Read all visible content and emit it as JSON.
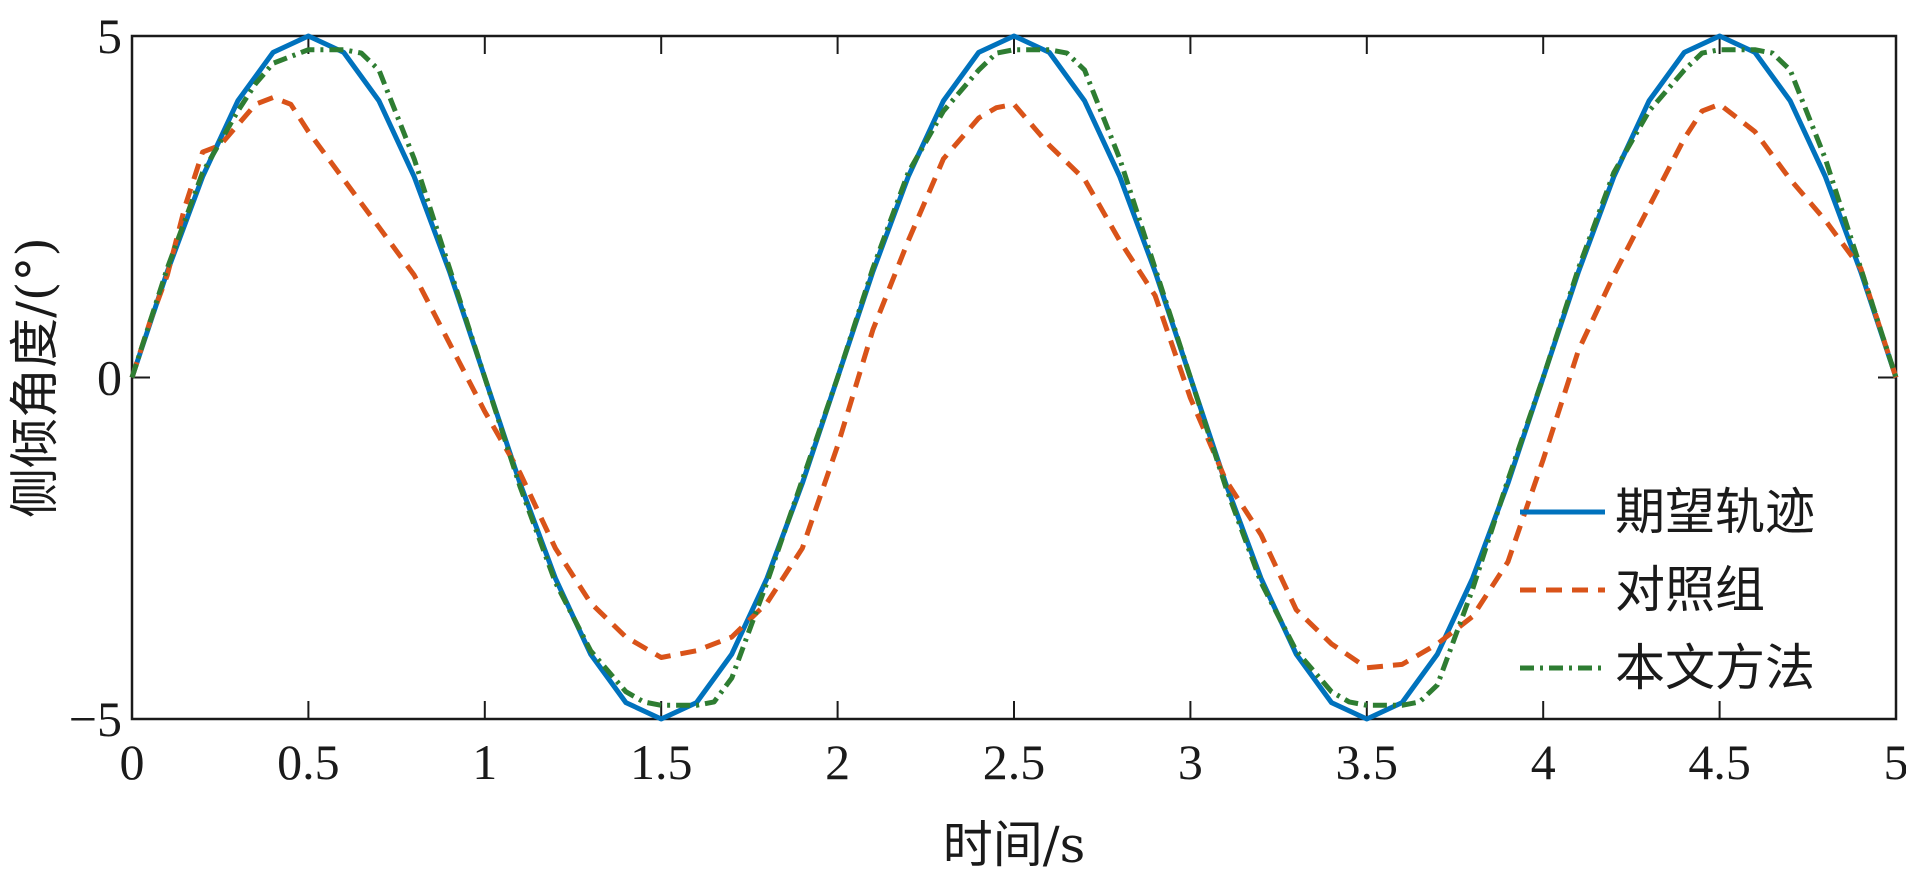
{
  "chart_data": {
    "type": "line",
    "xlabel": "时间/s",
    "ylabel": "侧倾角度/(°)",
    "xlim": [
      0,
      5
    ],
    "ylim": [
      -5,
      5
    ],
    "xticks": [
      "0",
      "0.5",
      "1",
      "1.5",
      "2",
      "2.5",
      "3",
      "3.5",
      "4",
      "4.5",
      "5"
    ],
    "yticks": [
      "−5",
      "0",
      "5"
    ],
    "grid": false,
    "legend_position": "bottom-right",
    "series": [
      {
        "name": "期望轨迹",
        "color": "#0072BD",
        "style": "solid",
        "x": [
          0,
          0.1,
          0.2,
          0.3,
          0.4,
          0.5,
          0.6,
          0.7,
          0.8,
          0.9,
          1.0,
          1.1,
          1.2,
          1.3,
          1.4,
          1.5,
          1.6,
          1.7,
          1.8,
          1.9,
          2.0,
          2.1,
          2.2,
          2.3,
          2.4,
          2.5,
          2.6,
          2.7,
          2.8,
          2.9,
          3.0,
          3.1,
          3.2,
          3.3,
          3.4,
          3.5,
          3.6,
          3.7,
          3.8,
          3.9,
          4.0,
          4.1,
          4.2,
          4.3,
          4.4,
          4.5,
          4.6,
          4.7,
          4.8,
          4.9,
          5.0
        ],
        "y": [
          0,
          1.55,
          2.94,
          4.05,
          4.76,
          5.0,
          4.76,
          4.05,
          2.94,
          1.55,
          0,
          -1.55,
          -2.94,
          -4.05,
          -4.76,
          -5.0,
          -4.76,
          -4.05,
          -2.94,
          -1.55,
          0,
          1.55,
          2.94,
          4.05,
          4.76,
          5.0,
          4.76,
          4.05,
          2.94,
          1.55,
          0,
          -1.55,
          -2.94,
          -4.05,
          -4.76,
          -5.0,
          -4.76,
          -4.05,
          -2.94,
          -1.55,
          0,
          1.55,
          2.94,
          4.05,
          4.76,
          5.0,
          4.76,
          4.05,
          2.94,
          1.55,
          0
        ]
      },
      {
        "name": "对照组",
        "color": "#D95319",
        "style": "dashed",
        "x": [
          0,
          0.05,
          0.1,
          0.15,
          0.2,
          0.25,
          0.3,
          0.35,
          0.4,
          0.45,
          0.5,
          0.6,
          0.7,
          0.8,
          0.9,
          1.0,
          1.1,
          1.2,
          1.3,
          1.4,
          1.5,
          1.6,
          1.7,
          1.8,
          1.9,
          2.0,
          2.1,
          2.2,
          2.3,
          2.4,
          2.45,
          2.5,
          2.6,
          2.7,
          2.8,
          2.9,
          3.0,
          3.1,
          3.2,
          3.3,
          3.4,
          3.5,
          3.6,
          3.7,
          3.8,
          3.9,
          4.0,
          4.1,
          4.2,
          4.3,
          4.4,
          4.45,
          4.5,
          4.6,
          4.7,
          4.8,
          4.9,
          5.0
        ],
        "y": [
          0,
          0.8,
          1.5,
          2.5,
          3.3,
          3.4,
          3.7,
          4.0,
          4.1,
          4.0,
          3.6,
          2.9,
          2.2,
          1.5,
          0.5,
          -0.5,
          -1.4,
          -2.5,
          -3.3,
          -3.8,
          -4.1,
          -4.0,
          -3.8,
          -3.3,
          -2.5,
          -1.0,
          0.7,
          2.0,
          3.2,
          3.8,
          3.95,
          4.0,
          3.4,
          2.9,
          2.0,
          1.2,
          -0.3,
          -1.5,
          -2.3,
          -3.4,
          -3.9,
          -4.25,
          -4.2,
          -3.9,
          -3.5,
          -2.7,
          -1.2,
          0.4,
          1.5,
          2.5,
          3.5,
          3.9,
          4.0,
          3.6,
          2.9,
          2.3,
          1.6,
          0
        ]
      },
      {
        "name": "本文方法",
        "color": "#2E7D32",
        "style": "dashdot",
        "x": [
          0,
          0.1,
          0.2,
          0.3,
          0.35,
          0.4,
          0.5,
          0.6,
          0.65,
          0.7,
          0.8,
          0.9,
          1.0,
          1.1,
          1.2,
          1.3,
          1.4,
          1.45,
          1.5,
          1.6,
          1.65,
          1.7,
          1.8,
          1.9,
          2.0,
          2.1,
          2.2,
          2.3,
          2.4,
          2.45,
          2.5,
          2.6,
          2.65,
          2.7,
          2.8,
          2.9,
          3.0,
          3.1,
          3.2,
          3.3,
          3.4,
          3.45,
          3.5,
          3.6,
          3.65,
          3.7,
          3.8,
          3.9,
          4.0,
          4.1,
          4.2,
          4.3,
          4.4,
          4.45,
          4.5,
          4.6,
          4.65,
          4.7,
          4.8,
          4.9,
          5.0
        ],
        "y": [
          0,
          1.6,
          3.0,
          3.9,
          4.3,
          4.6,
          4.8,
          4.8,
          4.75,
          4.5,
          3.2,
          1.6,
          0,
          -1.6,
          -3.0,
          -4.0,
          -4.6,
          -4.75,
          -4.8,
          -4.8,
          -4.75,
          -4.4,
          -3.0,
          -1.5,
          0,
          1.6,
          3.0,
          3.9,
          4.5,
          4.75,
          4.8,
          4.8,
          4.75,
          4.5,
          3.2,
          1.6,
          0,
          -1.6,
          -3.0,
          -4.0,
          -4.6,
          -4.75,
          -4.8,
          -4.8,
          -4.75,
          -4.5,
          -3.1,
          -1.5,
          0,
          1.6,
          3.0,
          3.9,
          4.5,
          4.75,
          4.8,
          4.8,
          4.75,
          4.5,
          3.2,
          1.6,
          0
        ]
      }
    ]
  }
}
